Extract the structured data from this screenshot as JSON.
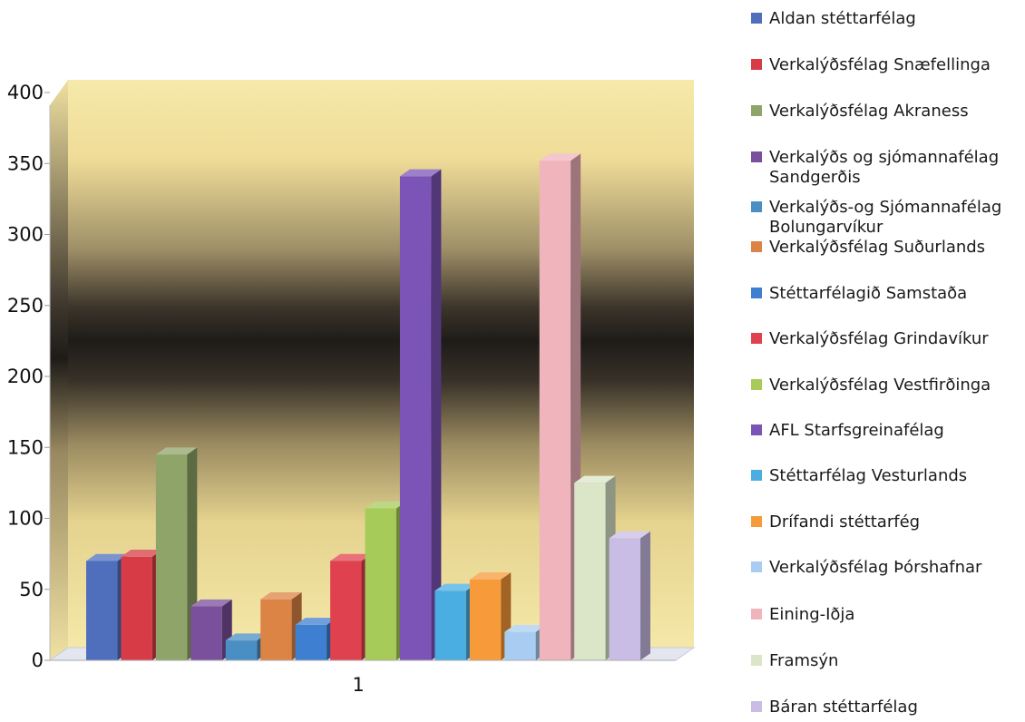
{
  "chart_data": {
    "type": "bar",
    "title": "",
    "xlabel": "",
    "ylabel": "",
    "categories": [
      "1"
    ],
    "ylim": [
      0,
      400
    ],
    "yticks": [
      0,
      50,
      100,
      150,
      200,
      250,
      300,
      350,
      400
    ],
    "grid": false,
    "legend_position": "right",
    "series": [
      {
        "name": "Aldan stéttarfélag",
        "values": [
          70
        ],
        "color": "#4f6fbd"
      },
      {
        "name": "Verkalýðsfélag Snæfellinga",
        "values": [
          73
        ],
        "color": "#d63b46"
      },
      {
        "name": "Verkalýðsfélag Akraness",
        "values": [
          145
        ],
        "color": "#8fa469"
      },
      {
        "name": "Verkalýðs og sjómannafélag Sandgerðis",
        "values": [
          38
        ],
        "color": "#7a4f9c"
      },
      {
        "name": "Verkalýðs-og Sjómannafélag Bolungarvíkur",
        "values": [
          14
        ],
        "color": "#4a8fc4"
      },
      {
        "name": "Verkalýðsfélag Suðurlands",
        "values": [
          43
        ],
        "color": "#dc8445"
      },
      {
        "name": "Stéttarfélagið Samstaða",
        "values": [
          25
        ],
        "color": "#3f7fd1"
      },
      {
        "name": "Verkalýðsfélag Grindavíkur",
        "values": [
          70
        ],
        "color": "#e0414f"
      },
      {
        "name": "Verkalýðsfélag Vestfirðinga",
        "values": [
          107
        ],
        "color": "#a7cb58"
      },
      {
        "name": "AFL Starfsgreinafélag",
        "values": [
          341
        ],
        "color": "#7c54b8"
      },
      {
        "name": "Stéttarfélag Vesturlands",
        "values": [
          49
        ],
        "color": "#4aaee2"
      },
      {
        "name": "Drífandi stéttarfég",
        "values": [
          57
        ],
        "color": "#f79a39"
      },
      {
        "name": "Verkalýðsfélag Þórshafnar",
        "values": [
          20
        ],
        "color": "#a9cdf2"
      },
      {
        "name": "Eining-Iðja",
        "values": [
          352
        ],
        "color": "#f0b4bd"
      },
      {
        "name": "Framsýn",
        "values": [
          125
        ],
        "color": "#dbe5c8"
      },
      {
        "name": "Báran stéttarfélag",
        "values": [
          86
        ],
        "color": "#c9bde6"
      }
    ]
  }
}
